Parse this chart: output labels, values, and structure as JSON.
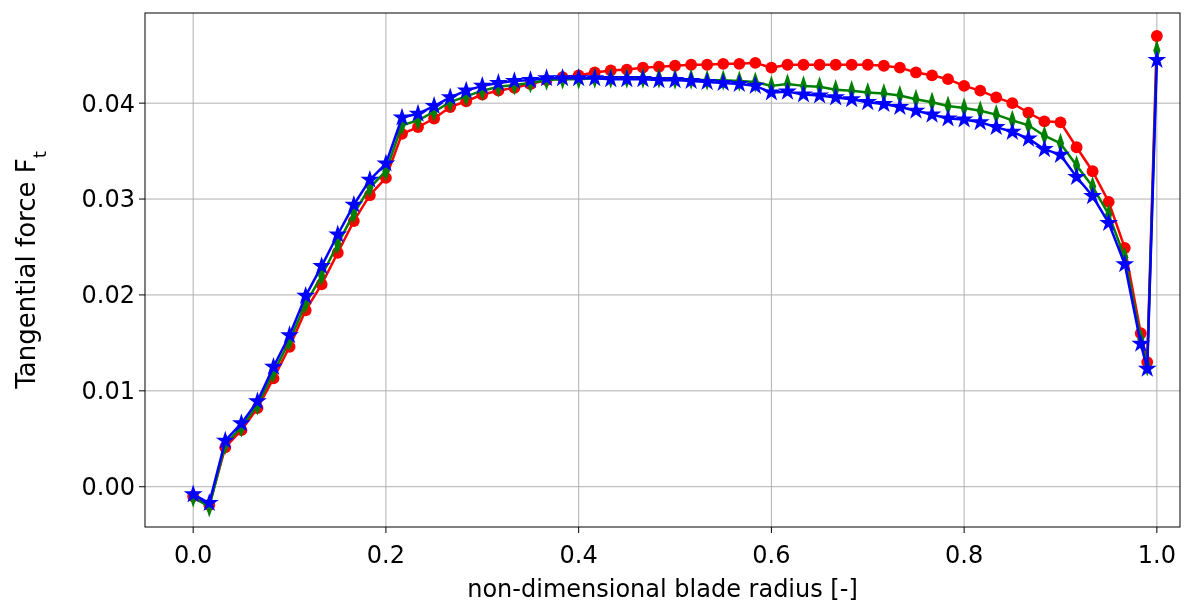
{
  "chart_data": {
    "type": "line",
    "xlabel": "non-dimensional blade radius [-]",
    "ylabel": "Tangential force F$_{t}$",
    "x": [
      0,
      0.0167,
      0.0333,
      0.05,
      0.0667,
      0.0833,
      0.1,
      0.1167,
      0.1333,
      0.15,
      0.1667,
      0.1833,
      0.2,
      0.2167,
      0.2333,
      0.25,
      0.2667,
      0.2833,
      0.3,
      0.3167,
      0.3333,
      0.35,
      0.3667,
      0.3833,
      0.4,
      0.4167,
      0.4333,
      0.45,
      0.4667,
      0.4833,
      0.5,
      0.5167,
      0.5333,
      0.55,
      0.5667,
      0.5833,
      0.6,
      0.6167,
      0.6333,
      0.65,
      0.6667,
      0.6833,
      0.7,
      0.7167,
      0.7333,
      0.75,
      0.7667,
      0.7833,
      0.8,
      0.8167,
      0.8333,
      0.85,
      0.8667,
      0.8833,
      0.9,
      0.9167,
      0.9333,
      0.95,
      0.9667,
      0.9833,
      0.99,
      1.0
    ],
    "series": [
      {
        "color": "#ff0000",
        "marker": "circle",
        "values": [
          -0.001,
          -0.0019,
          0.0041,
          0.0059,
          0.0082,
          0.0113,
          0.0146,
          0.0184,
          0.0211,
          0.0244,
          0.0277,
          0.0304,
          0.0322,
          0.0368,
          0.0375,
          0.0384,
          0.0396,
          0.0402,
          0.0409,
          0.0413,
          0.0416,
          0.042,
          0.0424,
          0.0427,
          0.0429,
          0.0432,
          0.0434,
          0.0435,
          0.0437,
          0.0438,
          0.0439,
          0.044,
          0.044,
          0.0441,
          0.0441,
          0.0442,
          0.0437,
          0.044,
          0.044,
          0.044,
          0.044,
          0.044,
          0.044,
          0.0439,
          0.0437,
          0.0432,
          0.0429,
          0.0425,
          0.0418,
          0.0413,
          0.0406,
          0.04,
          0.039,
          0.0381,
          0.038,
          0.0354,
          0.0329,
          0.0297,
          0.0249,
          0.016,
          0.013,
          0.047
        ]
      },
      {
        "color": "#008000",
        "marker": "diamond",
        "values": [
          -0.0011,
          -0.0021,
          0.0044,
          0.0062,
          0.0085,
          0.0119,
          0.0152,
          0.0191,
          0.022,
          0.0253,
          0.0285,
          0.0312,
          0.0329,
          0.0377,
          0.0382,
          0.0391,
          0.0401,
          0.0407,
          0.0413,
          0.0417,
          0.0419,
          0.0421,
          0.0424,
          0.0425,
          0.0425,
          0.0426,
          0.0426,
          0.0426,
          0.0426,
          0.0426,
          0.0425,
          0.0425,
          0.0424,
          0.0424,
          0.0423,
          0.0422,
          0.0418,
          0.042,
          0.0418,
          0.0417,
          0.0414,
          0.0413,
          0.0411,
          0.041,
          0.0408,
          0.0404,
          0.0401,
          0.0397,
          0.0395,
          0.0392,
          0.0388,
          0.0382,
          0.0377,
          0.0366,
          0.0358,
          0.0335,
          0.0313,
          0.0284,
          0.0239,
          0.0154,
          0.0126,
          0.0455
        ]
      },
      {
        "color": "#0000ff",
        "marker": "star",
        "values": [
          -0.0008,
          -0.0017,
          0.0048,
          0.0066,
          0.0089,
          0.0125,
          0.0158,
          0.0199,
          0.023,
          0.0263,
          0.0294,
          0.032,
          0.0337,
          0.0385,
          0.0389,
          0.0397,
          0.0406,
          0.0413,
          0.0418,
          0.0421,
          0.0423,
          0.0424,
          0.0426,
          0.0426,
          0.0426,
          0.0426,
          0.0425,
          0.0425,
          0.0425,
          0.0424,
          0.0424,
          0.0423,
          0.0422,
          0.0421,
          0.042,
          0.0418,
          0.0411,
          0.0412,
          0.0409,
          0.0408,
          0.0406,
          0.0404,
          0.0401,
          0.0399,
          0.0396,
          0.0392,
          0.0388,
          0.0384,
          0.0383,
          0.038,
          0.0375,
          0.037,
          0.0363,
          0.0352,
          0.0346,
          0.0323,
          0.0303,
          0.0275,
          0.0232,
          0.0149,
          0.0123,
          0.0445
        ]
      }
    ],
    "xlim": [
      -0.05,
      1.024
    ],
    "ylim": [
      -0.0042,
      0.0494
    ],
    "xticks": [
      {
        "value": 0,
        "label": "0.0"
      },
      {
        "value": 0.2,
        "label": "0.2"
      },
      {
        "value": 0.4,
        "label": "0.4"
      },
      {
        "value": 0.6,
        "label": "0.6"
      },
      {
        "value": 0.8,
        "label": "0.8"
      },
      {
        "value": 1,
        "label": "1.0"
      }
    ],
    "yticks": [
      {
        "value": 0,
        "label": "0.00"
      },
      {
        "value": 0.01,
        "label": "0.01"
      },
      {
        "value": 0.02,
        "label": "0.02"
      },
      {
        "value": 0.03,
        "label": "0.03"
      },
      {
        "value": 0.04,
        "label": "0.04"
      }
    ],
    "grid": true,
    "line_style": "solid"
  }
}
